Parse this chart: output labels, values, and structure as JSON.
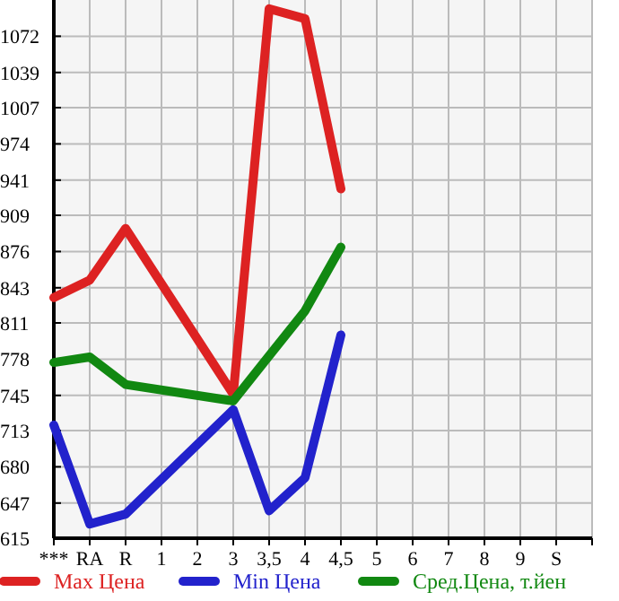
{
  "chart_data": {
    "type": "line",
    "categories": [
      "***",
      "RA",
      "R",
      "1",
      "2",
      "3",
      "3,5",
      "4",
      "4,5",
      "5",
      "6",
      "7",
      "8",
      "9",
      "S"
    ],
    "ylim": [
      615,
      1105
    ],
    "yticks": [
      615,
      647,
      680,
      713,
      745,
      778,
      811,
      843,
      876,
      909,
      941,
      974,
      1007,
      1039,
      1072
    ],
    "grid": true,
    "legend": "bottom",
    "series": [
      {
        "name": "Max Цена",
        "color": "#dd2222",
        "values": [
          834,
          850,
          897,
          null,
          null,
          746,
          1097,
          1088,
          933,
          null,
          null,
          null,
          null,
          null,
          null
        ]
      },
      {
        "name": "Min Цена",
        "color": "#2222cc",
        "values": [
          718,
          628,
          637,
          null,
          null,
          732,
          640,
          670,
          800,
          null,
          null,
          null,
          null,
          null,
          null
        ]
      },
      {
        "name": "Сред.Цена, т.йен",
        "color": "#118811",
        "values": [
          775,
          780,
          755,
          null,
          null,
          740,
          781,
          822,
          880,
          null,
          null,
          null,
          null,
          null,
          null
        ]
      }
    ]
  }
}
